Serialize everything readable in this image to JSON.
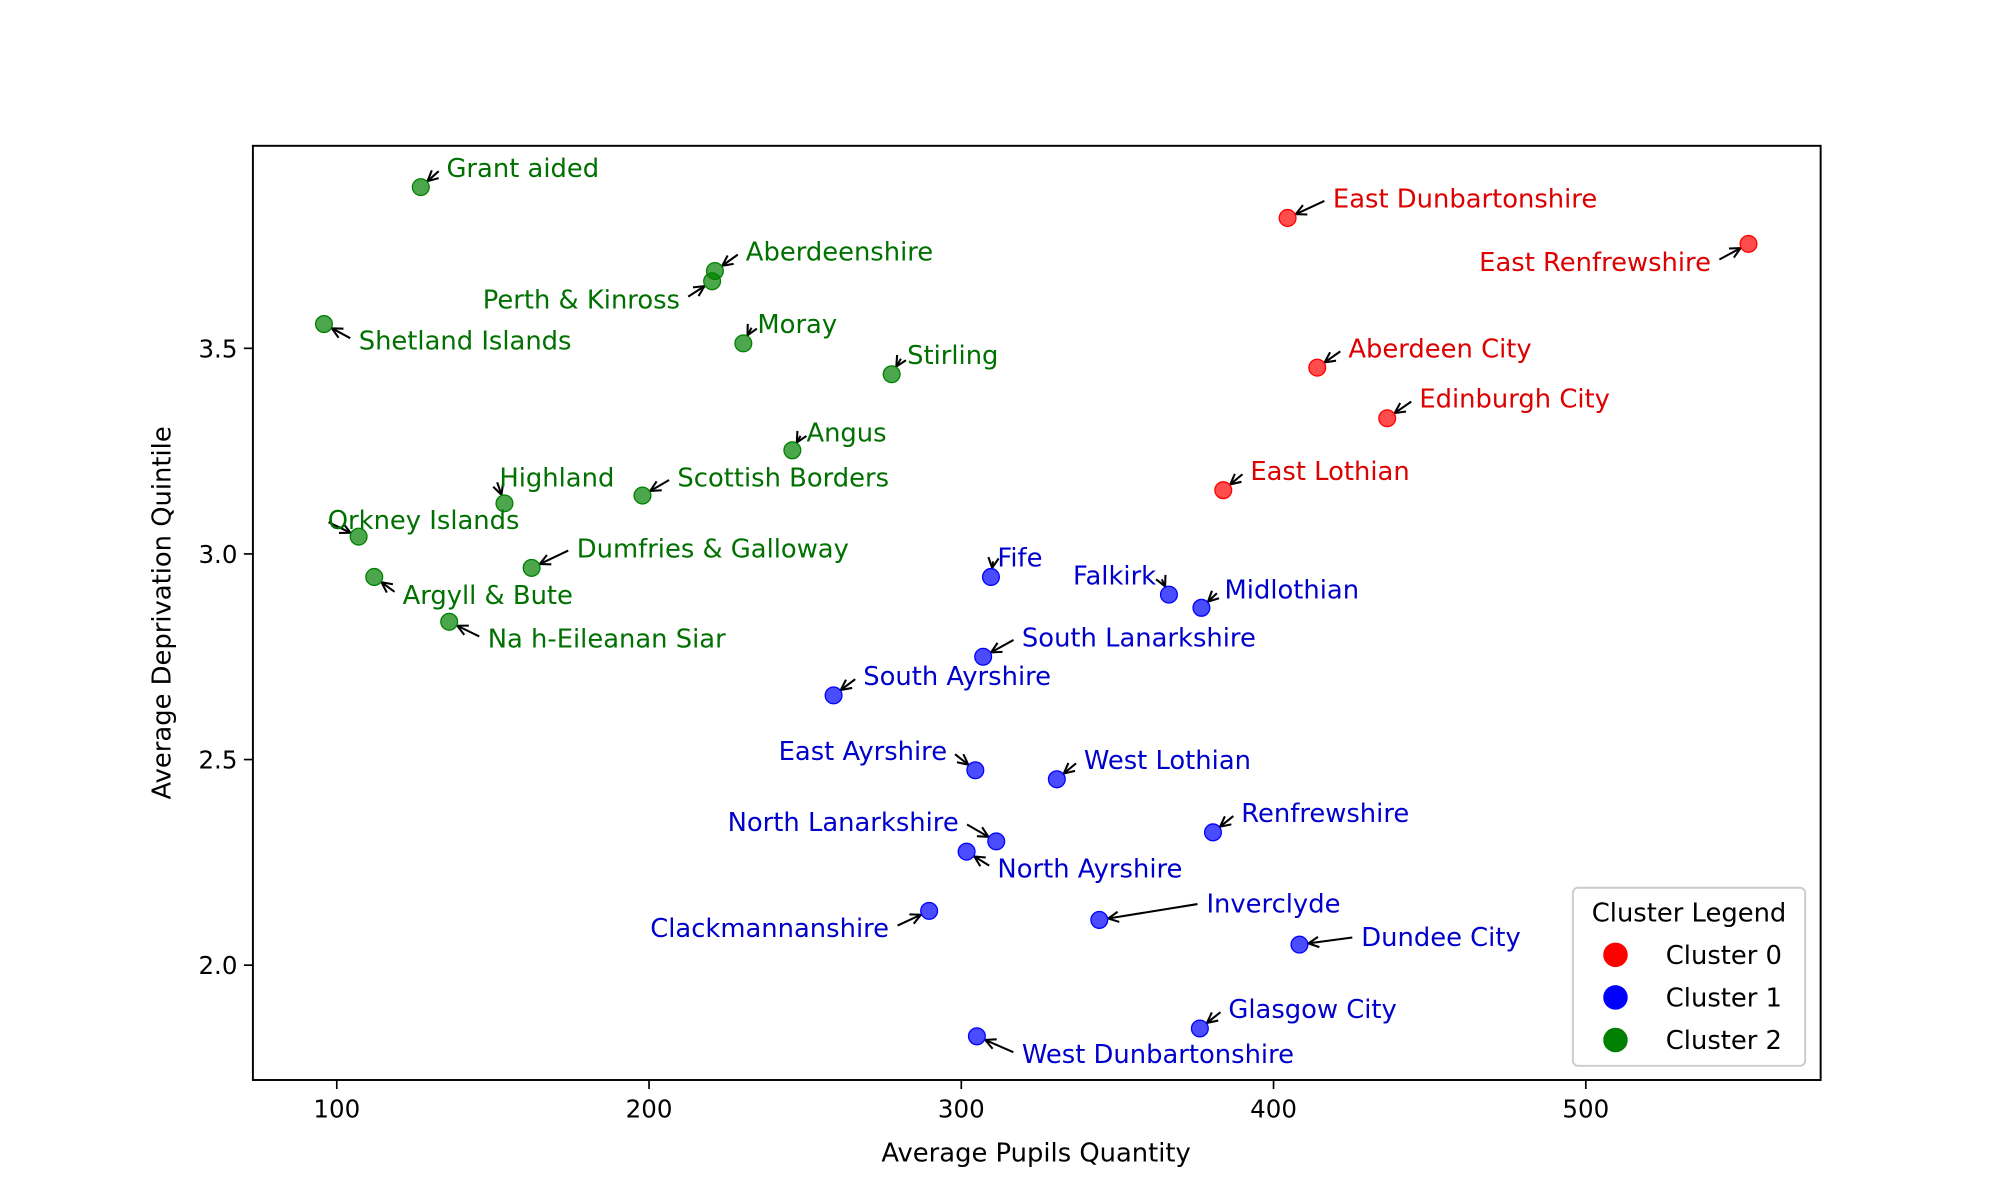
{
  "chart_data": {
    "type": "scatter",
    "title": "",
    "xlabel": "Average Pupils Quantity",
    "ylabel": "Average Deprivation Quintile",
    "xlim": [
      73,
      575
    ],
    "ylim": [
      1.72,
      3.98
    ],
    "xticks": [
      100,
      200,
      300,
      400,
      500
    ],
    "yticks": [
      2.0,
      2.5,
      3.0,
      3.5
    ],
    "xtick_labels": [
      "100",
      "200",
      "300",
      "400",
      "500"
    ],
    "ytick_labels": [
      "2.0",
      "2.5",
      "3.0",
      "3.5"
    ],
    "grid": false,
    "legend": {
      "title": "Cluster Legend",
      "placement": "bottom-right",
      "entries": [
        {
          "name": "Cluster 0",
          "color": "#ff0000"
        },
        {
          "name": "Cluster 1",
          "color": "#0000ff"
        },
        {
          "name": "Cluster 2",
          "color": "#008000"
        }
      ]
    },
    "series": [
      {
        "name": "Cluster 0",
        "color": "#ff0000",
        "label_color": "#dd0000",
        "points": [
          {
            "label": "East Dunbartonshire",
            "x": 404.5,
            "y": 3.817
          },
          {
            "label": "East Renfrewshire",
            "x": 552.1,
            "y": 3.754
          },
          {
            "label": "Aberdeen City",
            "x": 414.0,
            "y": 3.453
          },
          {
            "label": "Edinburgh City",
            "x": 436.4,
            "y": 3.33
          },
          {
            "label": "East Lothian",
            "x": 383.9,
            "y": 3.155
          }
        ]
      },
      {
        "name": "Cluster 1",
        "color": "#0000ff",
        "label_color": "#0000cc",
        "points": [
          {
            "label": "Fife",
            "x": 309.5,
            "y": 2.944
          },
          {
            "label": "Falkirk",
            "x": 366.5,
            "y": 2.901
          },
          {
            "label": "Midlothian",
            "x": 376.9,
            "y": 2.869
          },
          {
            "label": "South Lanarkshire",
            "x": 307.0,
            "y": 2.75
          },
          {
            "label": "South Ayrshire",
            "x": 259.1,
            "y": 2.656
          },
          {
            "label": "East Ayrshire",
            "x": 304.5,
            "y": 2.474
          },
          {
            "label": "West Lothian",
            "x": 330.6,
            "y": 2.452
          },
          {
            "label": "North Lanarkshire",
            "x": 311.2,
            "y": 2.301
          },
          {
            "label": "North Ayrshire",
            "x": 301.7,
            "y": 2.276
          },
          {
            "label": "Renfrewshire",
            "x": 380.6,
            "y": 2.323
          },
          {
            "label": "Clackmannanshire",
            "x": 289.7,
            "y": 2.132
          },
          {
            "label": "Inverclyde",
            "x": 344.2,
            "y": 2.11
          },
          {
            "label": "Dundee City",
            "x": 408.3,
            "y": 2.05
          },
          {
            "label": "Glasgow City",
            "x": 376.4,
            "y": 1.846
          },
          {
            "label": "West Dunbartonshire",
            "x": 305.0,
            "y": 1.827
          }
        ]
      },
      {
        "name": "Cluster 2",
        "color": "#008000",
        "label_color": "#007000",
        "points": [
          {
            "label": "Grant aided",
            "x": 126.9,
            "y": 3.892
          },
          {
            "label": "Aberdeenshire",
            "x": 221.1,
            "y": 3.688
          },
          {
            "label": "Perth & Kinross",
            "x": 220.2,
            "y": 3.663
          },
          {
            "label": "Shetland Islands",
            "x": 95.9,
            "y": 3.559
          },
          {
            "label": "Moray",
            "x": 230.2,
            "y": 3.512
          },
          {
            "label": "Stirling",
            "x": 277.7,
            "y": 3.437
          },
          {
            "label": "Angus",
            "x": 245.9,
            "y": 3.252
          },
          {
            "label": "Highland",
            "x": 153.7,
            "y": 3.123
          },
          {
            "label": "Scottish Borders",
            "x": 197.9,
            "y": 3.142
          },
          {
            "label": "Orkney Islands",
            "x": 107.0,
            "y": 3.042
          },
          {
            "label": "Dumfries & Galloway",
            "x": 162.4,
            "y": 2.966
          },
          {
            "label": "Argyll & Bute",
            "x": 112.0,
            "y": 2.944
          },
          {
            "label": "Na h-Eileanan Siar",
            "x": 136.0,
            "y": 2.835
          }
        ]
      }
    ]
  }
}
